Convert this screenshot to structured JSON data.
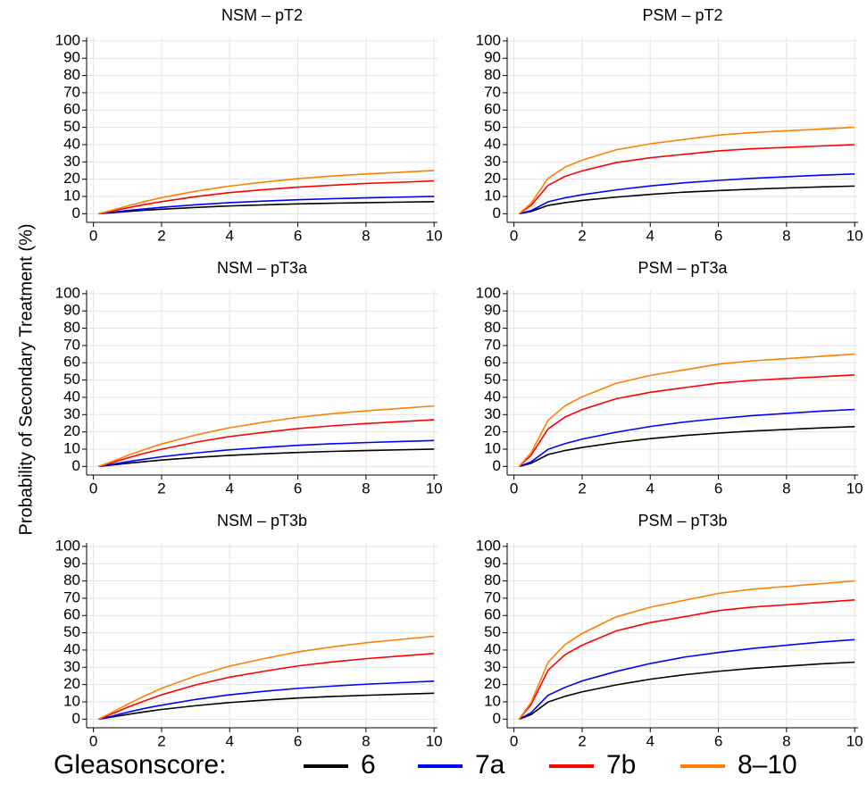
{
  "ylabel": "Probability of Secondary Treatment (%)",
  "legend_title": "Gleasonscore:",
  "chart_data": [
    {
      "type": "line",
      "title": "NSM – pT2",
      "x": [
        0.15,
        0.5,
        1,
        1.5,
        2,
        3,
        4,
        5,
        6,
        7,
        8,
        9,
        10
      ],
      "xlim": [
        -0.2,
        10.1
      ],
      "xticks": [
        0,
        2,
        4,
        6,
        8,
        10
      ],
      "ylim": [
        -5,
        102
      ],
      "yticks": [
        0,
        10,
        20,
        30,
        40,
        50,
        60,
        70,
        80,
        90,
        100
      ],
      "grid": true,
      "series": [
        {
          "name": "6",
          "color": "#000000",
          "values": [
            0,
            0.5,
            1.3,
            2,
            2.6,
            3.6,
            4.5,
            5.1,
            5.7,
            6.1,
            6.4,
            6.7,
            7
          ]
        },
        {
          "name": "7a",
          "color": "#0000ff",
          "values": [
            0,
            0.7,
            1.8,
            2.8,
            3.7,
            5.2,
            6.4,
            7.3,
            8.1,
            8.7,
            9.2,
            9.6,
            10
          ]
        },
        {
          "name": "7b",
          "color": "#ff0000",
          "values": [
            0,
            1.3,
            3.4,
            5.3,
            7,
            9.9,
            12.2,
            13.9,
            15.4,
            16.5,
            17.5,
            18.2,
            19
          ]
        },
        {
          "name": "8–10",
          "color": "#ff8000",
          "values": [
            0,
            1.8,
            4.5,
            7,
            9.3,
            13,
            16,
            18.3,
            20.3,
            21.8,
            23,
            24,
            25
          ]
        }
      ]
    },
    {
      "type": "line",
      "title": "PSM – pT2",
      "x": [
        0.15,
        0.5,
        1,
        1.5,
        2,
        3,
        4,
        5,
        6,
        7,
        8,
        9,
        10
      ],
      "xlim": [
        -0.2,
        10.1
      ],
      "xticks": [
        0,
        2,
        4,
        6,
        8,
        10
      ],
      "ylim": [
        -5,
        102
      ],
      "yticks": [
        0,
        10,
        20,
        30,
        40,
        50,
        60,
        70,
        80,
        90,
        100
      ],
      "grid": true,
      "series": [
        {
          "name": "6",
          "color": "#000000",
          "values": [
            0,
            1.3,
            4.8,
            6.4,
            7.7,
            9.6,
            11.2,
            12.5,
            13.4,
            14.2,
            14.9,
            15.5,
            16
          ]
        },
        {
          "name": "7a",
          "color": "#0000ff",
          "values": [
            0,
            1.8,
            6.9,
            9.2,
            11,
            13.8,
            16.1,
            17.9,
            19.3,
            20.5,
            21.4,
            22.3,
            23
          ]
        },
        {
          "name": "7b",
          "color": "#ff0000",
          "values": [
            0,
            4.8,
            16.4,
            21.6,
            24.8,
            29.6,
            32.4,
            34.4,
            36.4,
            37.6,
            38.4,
            39.2,
            40
          ]
        },
        {
          "name": "8–10",
          "color": "#ff8000",
          "values": [
            0,
            6,
            20.5,
            27,
            31,
            37,
            40.5,
            43,
            45.5,
            47,
            48,
            49,
            50
          ]
        }
      ]
    },
    {
      "type": "line",
      "title": "NSM – pT3a",
      "x": [
        0.15,
        0.5,
        1,
        1.5,
        2,
        3,
        4,
        5,
        6,
        7,
        8,
        9,
        10
      ],
      "xlim": [
        -0.2,
        10.1
      ],
      "xticks": [
        0,
        2,
        4,
        6,
        8,
        10
      ],
      "ylim": [
        -5,
        102
      ],
      "yticks": [
        0,
        10,
        20,
        30,
        40,
        50,
        60,
        70,
        80,
        90,
        100
      ],
      "grid": true,
      "series": [
        {
          "name": "6",
          "color": "#000000",
          "values": [
            0,
            0.7,
            1.8,
            2.8,
            3.7,
            5.2,
            6.4,
            7.3,
            8.1,
            8.7,
            9.2,
            9.6,
            10
          ]
        },
        {
          "name": "7a",
          "color": "#0000ff",
          "values": [
            0,
            1.1,
            2.7,
            4.2,
            5.6,
            7.8,
            9.6,
            11,
            12.2,
            13.1,
            13.8,
            14.4,
            15
          ]
        },
        {
          "name": "7b",
          "color": "#ff0000",
          "values": [
            0,
            1.9,
            4.9,
            7.6,
            10,
            14,
            17.3,
            19.7,
            21.9,
            23.5,
            24.8,
            25.9,
            27
          ]
        },
        {
          "name": "8–10",
          "color": "#ff8000",
          "values": [
            0,
            2.5,
            6.3,
            9.8,
            13,
            18.2,
            22.4,
            25.6,
            28.4,
            30.5,
            32.2,
            33.6,
            35
          ]
        }
      ]
    },
    {
      "type": "line",
      "title": "PSM – pT3a",
      "x": [
        0.15,
        0.5,
        1,
        1.5,
        2,
        3,
        4,
        5,
        6,
        7,
        8,
        9,
        10
      ],
      "xlim": [
        -0.2,
        10.1
      ],
      "xticks": [
        0,
        2,
        4,
        6,
        8,
        10
      ],
      "ylim": [
        -5,
        102
      ],
      "yticks": [
        0,
        10,
        20,
        30,
        40,
        50,
        60,
        70,
        80,
        90,
        100
      ],
      "grid": true,
      "series": [
        {
          "name": "6",
          "color": "#000000",
          "values": [
            0,
            1.8,
            6.9,
            9.2,
            11,
            13.8,
            16.1,
            17.9,
            19.3,
            20.5,
            21.4,
            22.3,
            23
          ]
        },
        {
          "name": "7a",
          "color": "#0000ff",
          "values": [
            0,
            2.6,
            9.9,
            13.2,
            15.8,
            19.8,
            23.1,
            25.7,
            27.7,
            29.4,
            30.7,
            32,
            33
          ]
        },
        {
          "name": "7b",
          "color": "#ff0000",
          "values": [
            0,
            6.4,
            21.7,
            28.6,
            32.9,
            39.2,
            42.9,
            45.6,
            48.2,
            49.8,
            50.9,
            51.9,
            53
          ]
        },
        {
          "name": "8–10",
          "color": "#ff8000",
          "values": [
            0,
            7.8,
            26.7,
            35.1,
            40.3,
            48.1,
            52.7,
            55.9,
            59.2,
            61.1,
            62.4,
            63.7,
            65
          ]
        }
      ]
    },
    {
      "type": "line",
      "title": "NSM – pT3b",
      "x": [
        0.15,
        0.5,
        1,
        1.5,
        2,
        3,
        4,
        5,
        6,
        7,
        8,
        9,
        10
      ],
      "xlim": [
        -0.2,
        10.1
      ],
      "xticks": [
        0,
        2,
        4,
        6,
        8,
        10
      ],
      "ylim": [
        -5,
        102
      ],
      "yticks": [
        0,
        10,
        20,
        30,
        40,
        50,
        60,
        70,
        80,
        90,
        100
      ],
      "grid": true,
      "series": [
        {
          "name": "6",
          "color": "#000000",
          "values": [
            0,
            1.1,
            2.7,
            4.2,
            5.6,
            7.8,
            9.6,
            11,
            12.2,
            13.1,
            13.8,
            14.4,
            15
          ]
        },
        {
          "name": "7a",
          "color": "#0000ff",
          "values": [
            0,
            1.5,
            4,
            6.2,
            8.1,
            11.4,
            14.1,
            16.1,
            17.8,
            19.1,
            20.2,
            21.1,
            22
          ]
        },
        {
          "name": "7b",
          "color": "#ff0000",
          "values": [
            0,
            2.7,
            6.8,
            10.6,
            14.1,
            19.8,
            24.3,
            27.7,
            30.8,
            33.1,
            35,
            36.5,
            38
          ]
        },
        {
          "name": "8–10",
          "color": "#ff8000",
          "values": [
            0,
            3.4,
            8.6,
            13.4,
            17.8,
            25,
            30.7,
            35,
            38.9,
            41.8,
            44.2,
            46.1,
            48
          ]
        }
      ]
    },
    {
      "type": "line",
      "title": "PSM – pT3b",
      "x": [
        0.15,
        0.5,
        1,
        1.5,
        2,
        3,
        4,
        5,
        6,
        7,
        8,
        9,
        10
      ],
      "xlim": [
        -0.2,
        10.1
      ],
      "xticks": [
        0,
        2,
        4,
        6,
        8,
        10
      ],
      "ylim": [
        -5,
        102
      ],
      "yticks": [
        0,
        10,
        20,
        30,
        40,
        50,
        60,
        70,
        80,
        90,
        100
      ],
      "grid": true,
      "series": [
        {
          "name": "6",
          "color": "#000000",
          "values": [
            0,
            2.6,
            9.9,
            13.2,
            15.8,
            19.8,
            23.1,
            25.7,
            27.7,
            29.4,
            30.7,
            32,
            33
          ]
        },
        {
          "name": "7a",
          "color": "#0000ff",
          "values": [
            0,
            3.7,
            13.8,
            18.4,
            22.1,
            27.6,
            32.2,
            35.9,
            38.6,
            40.9,
            42.8,
            44.6,
            46
          ]
        },
        {
          "name": "7b",
          "color": "#ff0000",
          "values": [
            0,
            8.3,
            28.3,
            37.3,
            42.8,
            51.1,
            55.9,
            59.3,
            62.8,
            64.9,
            66.2,
            67.6,
            69
          ]
        },
        {
          "name": "8–10",
          "color": "#ff8000",
          "values": [
            0,
            9.6,
            32.8,
            43.2,
            49.6,
            59.2,
            64.8,
            68.8,
            72.8,
            75.2,
            76.8,
            78.4,
            80
          ]
        }
      ]
    }
  ]
}
